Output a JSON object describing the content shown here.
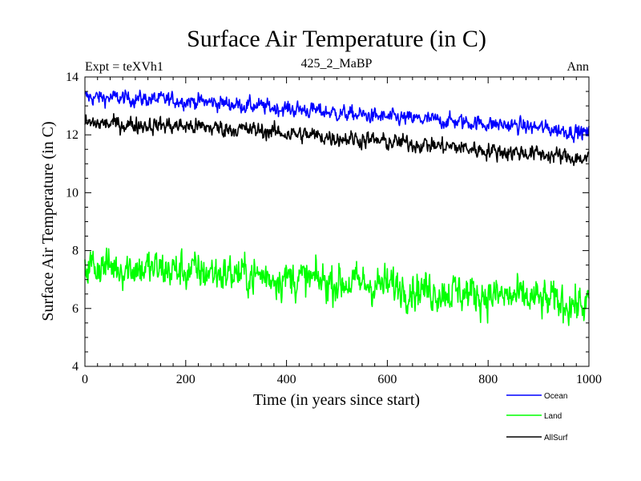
{
  "chart_data": {
    "type": "line",
    "title": "Surface Air Temperature (in C)",
    "subtitle_left": "Expt = teXVh1",
    "subtitle_center": "425_2_MaBP",
    "subtitle_right": "Ann",
    "xlabel": "Time (in years since start)",
    "ylabel": "Surface Air Temperature (in C)",
    "xlim": [
      0,
      1000
    ],
    "ylim": [
      4,
      14
    ],
    "xticks": [
      0,
      200,
      400,
      600,
      800,
      1000
    ],
    "yticks": [
      4,
      6,
      8,
      10,
      12,
      14
    ],
    "x": [
      0,
      50,
      100,
      150,
      200,
      250,
      300,
      350,
      400,
      450,
      500,
      550,
      600,
      650,
      700,
      750,
      800,
      850,
      900,
      950,
      1000
    ],
    "series": [
      {
        "name": "Ocean",
        "color": "#0000ff",
        "values": [
          13.3,
          13.28,
          13.25,
          13.22,
          13.18,
          13.12,
          13.05,
          12.98,
          12.9,
          12.85,
          12.75,
          12.68,
          12.6,
          12.55,
          12.5,
          12.45,
          12.38,
          12.32,
          12.25,
          12.15,
          12.05
        ],
        "noise": 0.12
      },
      {
        "name": "Land",
        "color": "#00ff00",
        "values": [
          7.5,
          7.45,
          7.4,
          7.35,
          7.3,
          7.25,
          7.2,
          7.12,
          7.05,
          6.98,
          6.9,
          6.85,
          6.8,
          6.7,
          6.6,
          6.55,
          6.45,
          6.4,
          6.3,
          6.2,
          6.1
        ],
        "noise": 0.3
      },
      {
        "name": "AllSurf",
        "color": "#000000",
        "values": [
          12.4,
          12.38,
          12.35,
          12.33,
          12.3,
          12.25,
          12.2,
          12.15,
          12.05,
          11.98,
          11.9,
          11.85,
          11.75,
          11.7,
          11.62,
          11.55,
          11.45,
          11.4,
          11.35,
          11.25,
          11.15
        ],
        "noise": 0.13
      }
    ],
    "legend_placement": "bottom-right"
  }
}
